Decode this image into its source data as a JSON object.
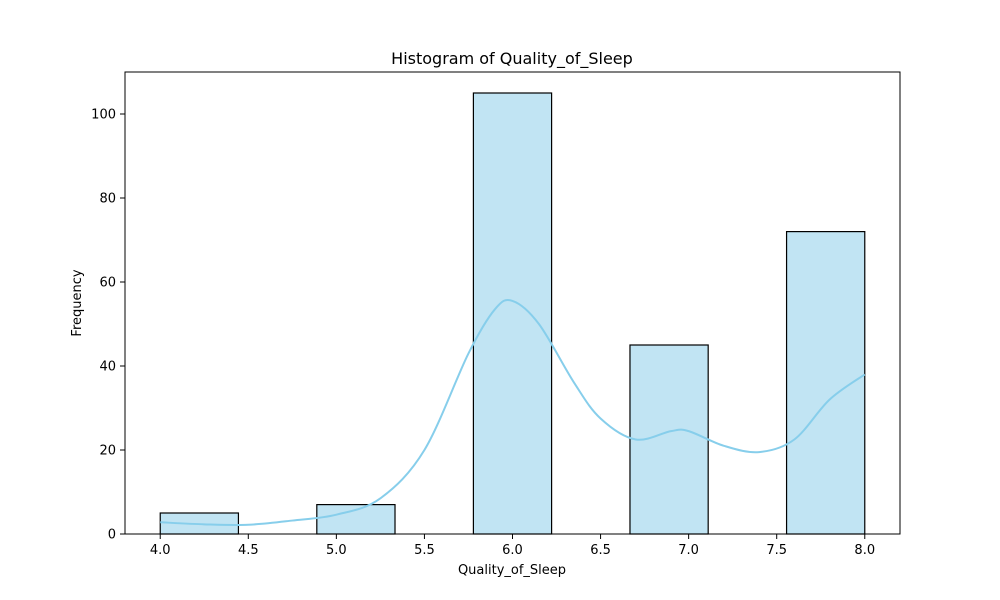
{
  "chart_data": {
    "type": "bar",
    "subtype": "histogram",
    "title": "Histogram of Quality_of_Sleep",
    "xlabel": "Quality_of_Sleep",
    "ylabel": "Frequency",
    "xlim": [
      3.8,
      8.2
    ],
    "ylim": [
      0,
      110
    ],
    "xticks": [
      4.0,
      4.5,
      5.0,
      5.5,
      6.0,
      6.5,
      7.0,
      7.5,
      8.0
    ],
    "xtick_labels": [
      "4.0",
      "4.5",
      "5.0",
      "5.5",
      "6.0",
      "6.5",
      "7.0",
      "7.5",
      "8.0"
    ],
    "yticks": [
      0,
      20,
      40,
      60,
      80,
      100
    ],
    "ytick_labels": [
      "0",
      "20",
      "40",
      "60",
      "80",
      "100"
    ],
    "bins": [
      {
        "x0": 4.0,
        "x1": 4.444,
        "count": 5
      },
      {
        "x0": 4.889,
        "x1": 5.333,
        "count": 7
      },
      {
        "x0": 5.778,
        "x1": 6.222,
        "count": 105
      },
      {
        "x0": 6.667,
        "x1": 7.111,
        "count": 45
      },
      {
        "x0": 7.556,
        "x1": 8.0,
        "count": 72
      }
    ],
    "kde": {
      "x": [
        4.0,
        4.25,
        4.5,
        4.75,
        5.0,
        5.25,
        5.5,
        5.75,
        5.9,
        6.0,
        6.15,
        6.35,
        6.5,
        6.7,
        6.9,
        7.0,
        7.2,
        7.4,
        7.6,
        7.8,
        8.0
      ],
      "y": [
        2.8,
        2.3,
        2.2,
        3.2,
        4.6,
        8.5,
        20,
        43,
        53.5,
        55.5,
        50,
        36,
        27.5,
        22.5,
        24.5,
        24.5,
        21,
        19.5,
        22.5,
        32,
        38
      ]
    },
    "bar_color": "#c1e4f3",
    "bar_edge_color": "#000000",
    "kde_color": "#87ceeb",
    "grid": false,
    "legend": "none"
  }
}
